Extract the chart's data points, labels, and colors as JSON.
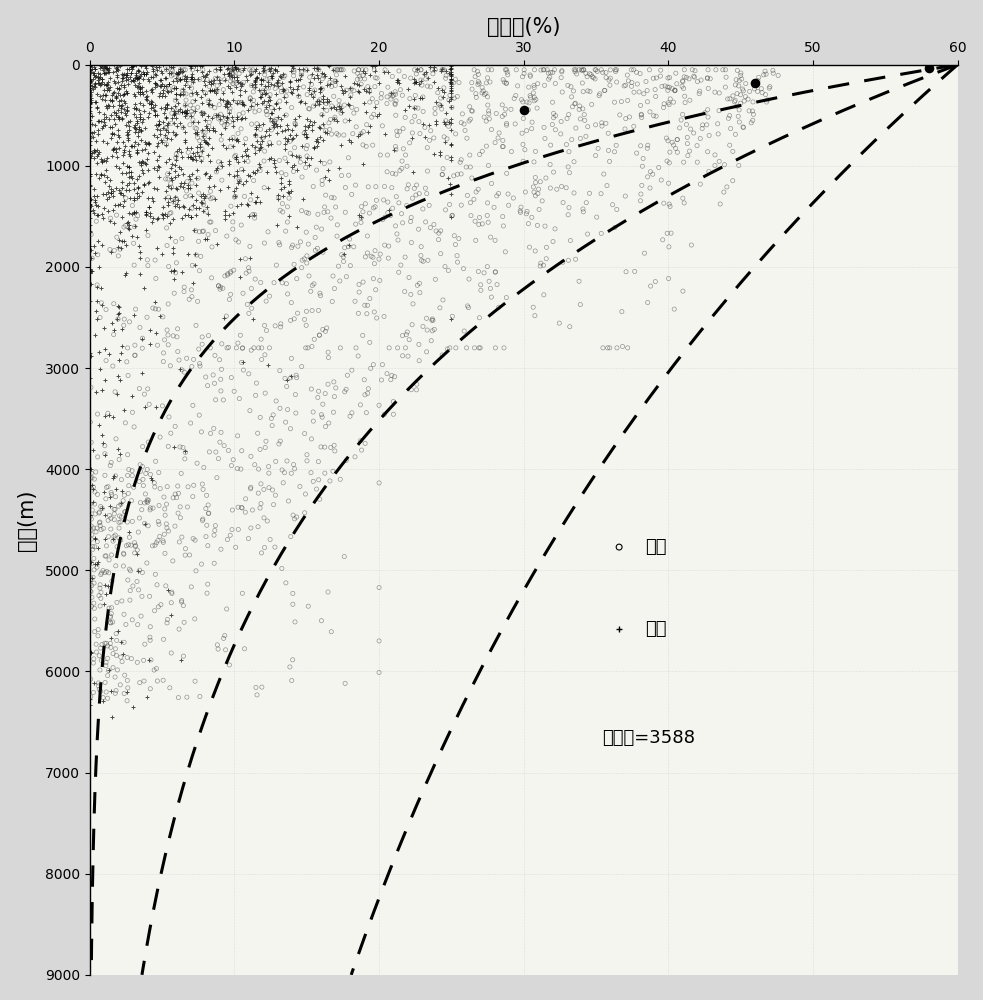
{
  "title": "孔隙度(%)",
  "ylabel": "埋深(m)",
  "legend_sandstone": "砂岩",
  "legend_mudstone": "泥岩",
  "annotation": "样本点=3588",
  "xlim": [
    0,
    60
  ],
  "ylim": [
    9000,
    0
  ],
  "xticks": [
    0,
    10,
    20,
    30,
    40,
    50,
    60
  ],
  "yticks": [
    0,
    1000,
    2000,
    3000,
    4000,
    5000,
    6000,
    7000,
    8000,
    9000
  ],
  "bg_color": "#d8d8d8",
  "plot_bg_color": "#f5f5f0",
  "n_sandstone": 2000,
  "n_mudstone": 1588
}
